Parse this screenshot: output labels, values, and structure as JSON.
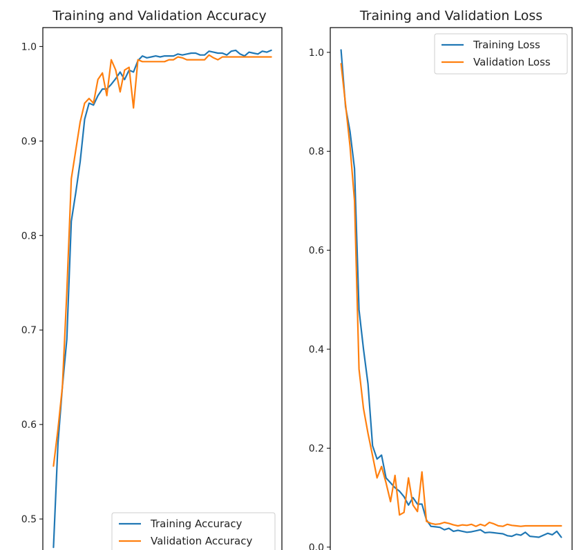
{
  "chart_data": [
    {
      "type": "line",
      "title": "Training and Validation Accuracy",
      "xlabel": "",
      "ylabel": "",
      "ylim": [
        0.465,
        1.02
      ],
      "yticks": [
        0.5,
        0.6,
        0.7,
        0.8,
        0.9,
        1.0
      ],
      "ytick_labels": [
        "0.5",
        "0.6",
        "0.7",
        "0.8",
        "0.9",
        "1.0"
      ],
      "grid": false,
      "legend_position": "bottom-right",
      "x": [
        0,
        1,
        2,
        3,
        4,
        5,
        6,
        7,
        8,
        9,
        10,
        11,
        12,
        13,
        14,
        15,
        16,
        17,
        18,
        19,
        20,
        21,
        22,
        23,
        24,
        25,
        26,
        27,
        28,
        29,
        30,
        31,
        32,
        33,
        34,
        35,
        36,
        37,
        38,
        39,
        40,
        41,
        42,
        43,
        44,
        45,
        46,
        47,
        48,
        49
      ],
      "series": [
        {
          "name": "Training Accuracy",
          "color": "#1f77b4",
          "values": [
            0.47,
            0.58,
            0.64,
            0.69,
            0.815,
            0.845,
            0.878,
            0.923,
            0.94,
            0.938,
            0.948,
            0.955,
            0.955,
            0.96,
            0.966,
            0.973,
            0.965,
            0.975,
            0.973,
            0.985,
            0.99,
            0.988,
            0.989,
            0.99,
            0.989,
            0.99,
            0.99,
            0.99,
            0.992,
            0.991,
            0.992,
            0.993,
            0.993,
            0.991,
            0.991,
            0.995,
            0.994,
            0.993,
            0.993,
            0.991,
            0.995,
            0.996,
            0.992,
            0.99,
            0.994,
            0.993,
            0.992,
            0.995,
            0.994,
            0.996
          ]
        },
        {
          "name": "Validation Accuracy",
          "color": "#ff7f0e",
          "values": [
            0.556,
            0.595,
            0.64,
            0.74,
            0.86,
            0.89,
            0.92,
            0.94,
            0.945,
            0.94,
            0.965,
            0.972,
            0.948,
            0.986,
            0.975,
            0.952,
            0.975,
            0.978,
            0.935,
            0.986,
            0.984,
            0.984,
            0.984,
            0.984,
            0.984,
            0.984,
            0.986,
            0.986,
            0.989,
            0.988,
            0.986,
            0.986,
            0.986,
            0.986,
            0.986,
            0.991,
            0.988,
            0.986,
            0.989,
            0.989,
            0.989,
            0.989,
            0.989,
            0.989,
            0.989,
            0.989,
            0.989,
            0.989,
            0.989,
            0.989
          ]
        }
      ]
    },
    {
      "type": "line",
      "title": "Training and Validation Loss",
      "xlabel": "",
      "ylabel": "",
      "ylim": [
        -0.01,
        1.05
      ],
      "yticks": [
        0.0,
        0.2,
        0.4,
        0.6,
        0.8,
        1.0
      ],
      "ytick_labels": [
        "0.0",
        "0.2",
        "0.4",
        "0.6",
        "0.8",
        "1.0"
      ],
      "grid": false,
      "legend_position": "top-right",
      "x": [
        0,
        1,
        2,
        3,
        4,
        5,
        6,
        7,
        8,
        9,
        10,
        11,
        12,
        13,
        14,
        15,
        16,
        17,
        18,
        19,
        20,
        21,
        22,
        23,
        24,
        25,
        26,
        27,
        28,
        29,
        30,
        31,
        32,
        33,
        34,
        35,
        36,
        37,
        38,
        39,
        40,
        41,
        42,
        43,
        44,
        45,
        46,
        47,
        48,
        49
      ],
      "series": [
        {
          "name": "Training Loss",
          "color": "#1f77b4",
          "values": [
            1.005,
            0.89,
            0.84,
            0.765,
            0.48,
            0.4,
            0.33,
            0.205,
            0.178,
            0.186,
            0.14,
            0.13,
            0.12,
            0.113,
            0.102,
            0.085,
            0.1,
            0.087,
            0.087,
            0.055,
            0.042,
            0.041,
            0.04,
            0.035,
            0.038,
            0.032,
            0.034,
            0.032,
            0.03,
            0.031,
            0.033,
            0.035,
            0.029,
            0.03,
            0.029,
            0.028,
            0.027,
            0.023,
            0.022,
            0.026,
            0.024,
            0.03,
            0.022,
            0.021,
            0.02,
            0.024,
            0.028,
            0.025,
            0.032,
            0.02
          ]
        },
        {
          "name": "Validation Loss",
          "color": "#ff7f0e",
          "values": [
            0.977,
            0.895,
            0.81,
            0.7,
            0.36,
            0.28,
            0.23,
            0.185,
            0.14,
            0.163,
            0.13,
            0.092,
            0.145,
            0.065,
            0.07,
            0.14,
            0.085,
            0.072,
            0.152,
            0.052,
            0.048,
            0.046,
            0.047,
            0.05,
            0.048,
            0.045,
            0.043,
            0.045,
            0.044,
            0.046,
            0.042,
            0.046,
            0.043,
            0.05,
            0.047,
            0.043,
            0.042,
            0.046,
            0.044,
            0.043,
            0.042,
            0.043,
            0.043,
            0.043,
            0.043,
            0.043,
            0.043,
            0.043,
            0.043,
            0.043
          ]
        }
      ]
    }
  ]
}
